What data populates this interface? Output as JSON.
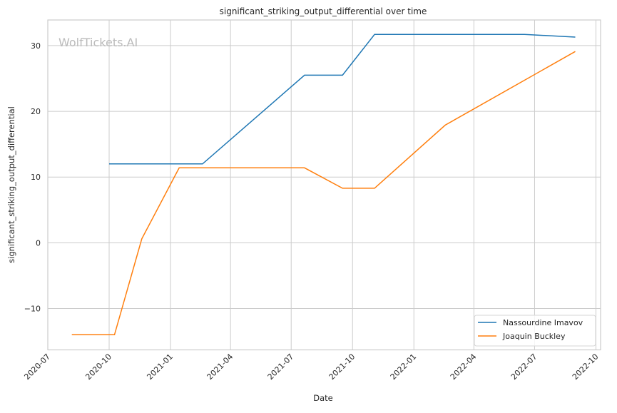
{
  "chart_data": {
    "type": "line",
    "title": "significant_striking_output_differential over time",
    "xlabel": "Date",
    "ylabel": "significant_striking_output_differential",
    "watermark": "WolfTickets.AI",
    "xlim": [
      "2020-07-01",
      "2022-10-08"
    ],
    "ylim": [
      -16.3,
      33.9
    ],
    "x_ticks": [
      "2020-07",
      "2020-10",
      "2021-01",
      "2021-04",
      "2021-07",
      "2021-10",
      "2022-01",
      "2022-04",
      "2022-07",
      "2022-10"
    ],
    "y_ticks": [
      -10,
      0,
      10,
      20,
      30
    ],
    "y_tick_labels": [
      "−10",
      "0",
      "10",
      "20",
      "30"
    ],
    "grid": true,
    "legend_position": "lower-right",
    "series": [
      {
        "name": "Nassourdine Imavov",
        "color": "#1f77b4",
        "x": [
          "2020-10-01",
          "2021-02-18",
          "2021-07-21",
          "2021-09-16",
          "2021-11-03",
          "2022-06-16",
          "2022-08-31"
        ],
        "y": [
          12.0,
          12.0,
          25.5,
          25.5,
          31.7,
          31.7,
          31.3
        ]
      },
      {
        "name": "Joaquin Buckley",
        "color": "#ff7f0e",
        "x": [
          "2020-08-06",
          "2020-10-09",
          "2020-11-19",
          "2021-01-14",
          "2021-07-21",
          "2021-09-16",
          "2021-11-03",
          "2022-02-17",
          "2022-08-31"
        ],
        "y": [
          -14.0,
          -14.0,
          0.6,
          11.4,
          11.4,
          8.3,
          8.3,
          17.9,
          29.1
        ]
      }
    ]
  }
}
